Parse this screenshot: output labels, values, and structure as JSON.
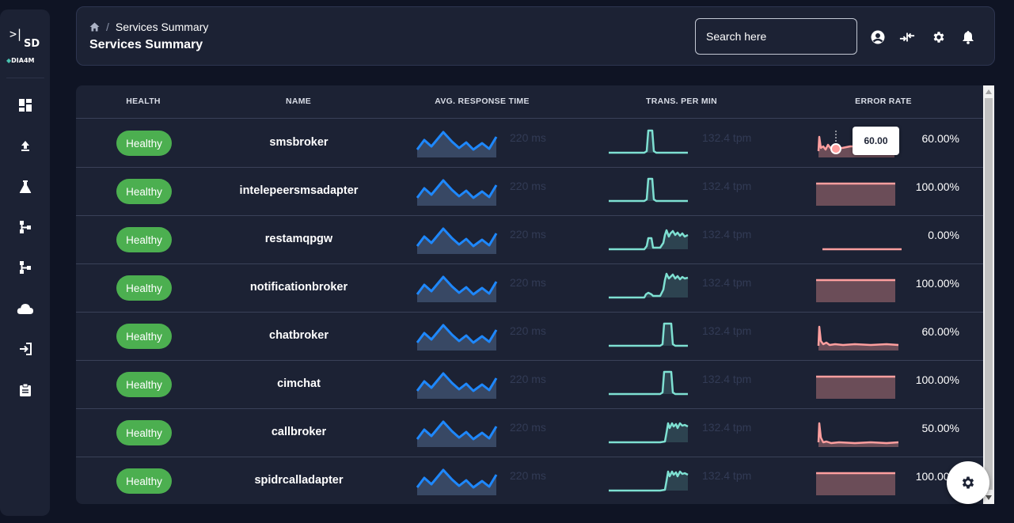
{
  "brand": {
    "logo_text": "DIA4M",
    "logo_mark": ">|",
    "logo_sub": "SD"
  },
  "sidebar": {
    "items": [
      {
        "icon": "dashboard-icon"
      },
      {
        "icon": "upload-icon"
      },
      {
        "icon": "flask-icon"
      },
      {
        "icon": "flow-icon"
      },
      {
        "icon": "flow-icon"
      },
      {
        "icon": "cloud-icon"
      },
      {
        "icon": "login-icon"
      },
      {
        "icon": "clipboard-icon"
      }
    ]
  },
  "header": {
    "breadcrumb_current": "Services Summary",
    "breadcrumb_separator": "/",
    "title": "Services Summary",
    "search_placeholder": "Search here"
  },
  "table": {
    "columns": [
      "HEALTH",
      "NAME",
      "AVG. RESPONSE TIME",
      "TRANS. PER MIN",
      "ERROR RATE"
    ],
    "rows": [
      {
        "health": "Healthy",
        "name": "smsbroker",
        "response": "220 ms",
        "tpm": "132.4 tpm",
        "error": "60.00%",
        "tpm_shape": "spike_mid",
        "err_shape": "decay_tooltip"
      },
      {
        "health": "Healthy",
        "name": "intelepeersmsadapter",
        "response": "220 ms",
        "tpm": "132.4 tpm",
        "error": "100.00%",
        "tpm_shape": "spike_mid",
        "err_shape": "flat_high"
      },
      {
        "health": "Healthy",
        "name": "restamqpgw",
        "response": "220 ms",
        "tpm": "132.4 tpm",
        "error": "0.00%",
        "tpm_shape": "double_noise",
        "err_shape": "flat_low"
      },
      {
        "health": "Healthy",
        "name": "notificationbroker",
        "response": "220 ms",
        "tpm": "132.4 tpm",
        "error": "100.00%",
        "tpm_shape": "small_bump_noise",
        "err_shape": "flat_high"
      },
      {
        "health": "Healthy",
        "name": "chatbroker",
        "response": "220 ms",
        "tpm": "132.4 tpm",
        "error": "60.00%",
        "tpm_shape": "spike_late",
        "err_shape": "decay"
      },
      {
        "health": "Healthy",
        "name": "cimchat",
        "response": "220 ms",
        "tpm": "132.4 tpm",
        "error": "100.00%",
        "tpm_shape": "spike_late",
        "err_shape": "flat_high"
      },
      {
        "health": "Healthy",
        "name": "callbroker",
        "response": "220 ms",
        "tpm": "132.4 tpm",
        "error": "50.00%",
        "tpm_shape": "step_noise",
        "err_shape": "decay_low"
      },
      {
        "health": "Healthy",
        "name": "spidrcalladapter",
        "response": "220 ms",
        "tpm": "132.4 tpm",
        "error": "100.00%",
        "tpm_shape": "step_noise",
        "err_shape": "flat_high"
      }
    ]
  },
  "tooltip": {
    "value": "60.00"
  },
  "colors": {
    "healthy": "#4caf50",
    "response_line": "#1e88ff",
    "tpm_line": "#7ee0d2",
    "error_line": "#ff9f9f",
    "background": "#0f1424",
    "panel": "#1c2234"
  }
}
